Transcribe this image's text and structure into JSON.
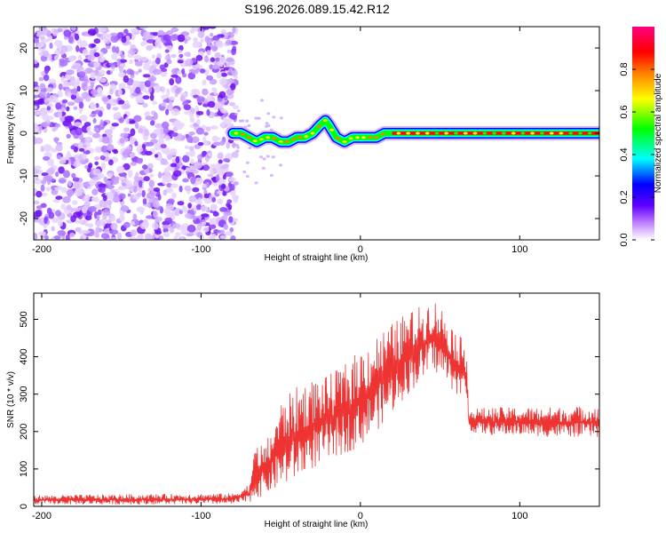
{
  "title": "S196.2026.089.15.42.R12",
  "chart_data": [
    {
      "type": "heatmap",
      "id": "spectrogram",
      "xlabel": "Height of straight line (km)",
      "ylabel": "Frequency (Hz)",
      "xlim": [
        -205,
        150
      ],
      "ylim": [
        -25,
        25
      ],
      "xticks": [
        -200,
        -100,
        0,
        100
      ],
      "xtick_labels": [
        "-200",
        "-100",
        "0",
        "100"
      ],
      "yticks": [
        20,
        10,
        0,
        -10,
        -20
      ],
      "ytick_labels": [
        "20",
        "10",
        "0",
        "-10",
        "-20"
      ],
      "noise_region_km": [
        -205,
        -78
      ],
      "tone_ridge": {
        "x_km": [
          -80,
          -75,
          -70,
          -65,
          -60,
          -55,
          -50,
          -45,
          -40,
          -35,
          -30,
          -25,
          -22,
          -20,
          -15,
          -10,
          -5,
          0,
          5,
          10,
          15,
          20,
          50,
          100,
          150
        ],
        "freq_hz": [
          0,
          0,
          -1,
          -2,
          -1,
          -1,
          -2,
          -2,
          -1,
          -1,
          0,
          2,
          3,
          2,
          -1,
          -2,
          -1,
          -1,
          -1,
          -1,
          0,
          0,
          0,
          0,
          0
        ]
      },
      "colorbar": {
        "label": "Normalized spectral amplitude",
        "range": [
          0,
          1
        ],
        "ticks": [
          0.0,
          0.2,
          0.4,
          0.6,
          0.8
        ],
        "tick_labels": [
          "0.0",
          "0.2",
          "0.4",
          "0.6",
          "0.8"
        ],
        "colors": [
          "#ffffff",
          "#8000ff",
          "#0000ff",
          "#00ffff",
          "#00ff00",
          "#ffff00",
          "#ff8000",
          "#ff0000",
          "#ff00a0"
        ]
      }
    },
    {
      "type": "line",
      "id": "snr",
      "xlabel": "Height of straight line (km)",
      "ylabel": "SNR (10 * v/v)",
      "xlim": [
        -205,
        150
      ],
      "ylim": [
        0,
        570
      ],
      "xticks": [
        -200,
        -100,
        0,
        100
      ],
      "xtick_labels": [
        "-200",
        "-100",
        "0",
        "100"
      ],
      "yticks": [
        0,
        100,
        200,
        300,
        400,
        500
      ],
      "ytick_labels": [
        "0",
        "100",
        "200",
        "300",
        "400",
        "500"
      ],
      "series": [
        {
          "name": "SNR",
          "color": "#ee3333",
          "envelope_x_km": [
            -205,
            -80,
            -70,
            -65,
            -60,
            -55,
            -50,
            -40,
            -30,
            -20,
            -10,
            0,
            10,
            20,
            30,
            40,
            45,
            50,
            60,
            67,
            68,
            80,
            100,
            120,
            150
          ],
          "envelope_low": [
            5,
            5,
            10,
            20,
            30,
            40,
            50,
            70,
            100,
            120,
            140,
            160,
            200,
            250,
            300,
            340,
            360,
            350,
            300,
            280,
            200,
            190,
            190,
            185,
            185
          ],
          "envelope_high": [
            30,
            35,
            60,
            180,
            160,
            220,
            280,
            320,
            340,
            350,
            380,
            420,
            460,
            490,
            520,
            540,
            560,
            540,
            470,
            430,
            260,
            265,
            265,
            265,
            270
          ]
        }
      ]
    }
  ]
}
